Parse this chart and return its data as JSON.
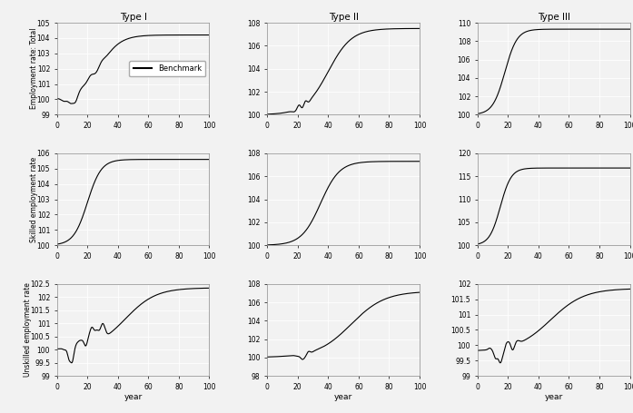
{
  "col_titles": [
    "Type I",
    "Type II",
    "Type III"
  ],
  "row_ylabels": [
    "Employment rate: Total",
    "Skilled employment rate",
    "Unskilled employment rate"
  ],
  "xlabel": "year",
  "legend_label": "Benchmark",
  "background_color": "#f2f2f2",
  "grid_color": "#ffffff",
  "line_color": "#000000",
  "ylims": [
    [
      [
        99,
        105
      ],
      [
        100,
        108
      ],
      [
        100,
        110
      ]
    ],
    [
      [
        100,
        106
      ],
      [
        100,
        108
      ],
      [
        100,
        120
      ]
    ],
    [
      [
        99,
        102.5
      ],
      [
        98,
        108
      ],
      [
        99,
        102
      ]
    ]
  ],
  "yticks": [
    [
      [
        99,
        100,
        101,
        102,
        103,
        104,
        105
      ],
      [
        100,
        102,
        104,
        106,
        108
      ],
      [
        100,
        102,
        104,
        106,
        108,
        110
      ]
    ],
    [
      [
        100,
        101,
        102,
        103,
        104,
        105,
        106
      ],
      [
        100,
        102,
        104,
        106,
        108
      ],
      [
        100,
        105,
        110,
        115,
        120
      ]
    ],
    [
      [
        99,
        99.5,
        100,
        100.5,
        101,
        101.5,
        102,
        102.5
      ],
      [
        98,
        100,
        102,
        104,
        106,
        108
      ],
      [
        99,
        99.5,
        100,
        100.5,
        101,
        101.5,
        102
      ]
    ]
  ]
}
